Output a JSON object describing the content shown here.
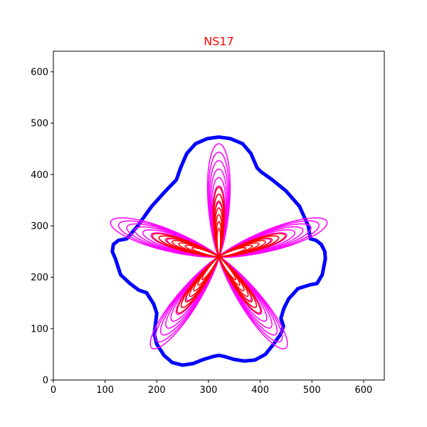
{
  "chart_data": {
    "type": "line",
    "title": "NS17",
    "title_color": "#ff0000",
    "xlabel": "",
    "ylabel": "",
    "xlim": [
      0,
      640
    ],
    "ylim": [
      0,
      640
    ],
    "xticks": [
      0,
      100,
      200,
      300,
      400,
      500,
      600
    ],
    "yticks": [
      0,
      100,
      200,
      300,
      400,
      500,
      600
    ],
    "grid": false,
    "legend": "none",
    "center": [
      320,
      240
    ],
    "series": [
      {
        "kind": "outline",
        "color": "#0000ff",
        "x": [
          320,
          342,
          366,
          382,
          394,
          402,
          423,
          450,
          476,
          493,
          497,
          508,
          518,
          525,
          526,
          520,
          510,
          495,
          473,
          455,
          446,
          440,
          445,
          440,
          426,
          410,
          390,
          370,
          350,
          330,
          320,
          310,
          290,
          270,
          250,
          230,
          214,
          200,
          195,
          200,
          194,
          180,
          165,
          148,
          130,
          120,
          114,
          116,
          126,
          142,
          163,
          190,
          217,
          238,
          246,
          258,
          275,
          298,
          320
        ],
        "y": [
          473,
          470,
          460,
          441,
          413,
          405,
          390,
          368,
          338,
          300,
          275,
          272,
          264,
          250,
          236,
          205,
          188,
          185,
          178,
          158,
          140,
          120,
          105,
          90,
          70,
          50,
          39,
          37,
          40,
          46,
          48,
          46,
          40,
          32,
          29,
          34,
          48,
          70,
          90,
          130,
          148,
          170,
          175,
          188,
          205,
          236,
          250,
          264,
          272,
          275,
          300,
          338,
          368,
          390,
          413,
          441,
          460,
          470,
          473
        ]
      },
      {
        "kind": "petals",
        "color": "#ff00ff",
        "levels": 8,
        "petal_angles_deg": [
          90,
          18,
          162,
          234,
          306
        ],
        "length": [
          105,
          220
        ],
        "half_width": [
          10,
          26
        ]
      },
      {
        "kind": "petals",
        "color": "#ff0000",
        "levels": 7,
        "petal_angles_deg": [
          90,
          18,
          162,
          234,
          306
        ],
        "length": [
          55,
          135
        ],
        "half_width": [
          4,
          13
        ]
      }
    ]
  }
}
